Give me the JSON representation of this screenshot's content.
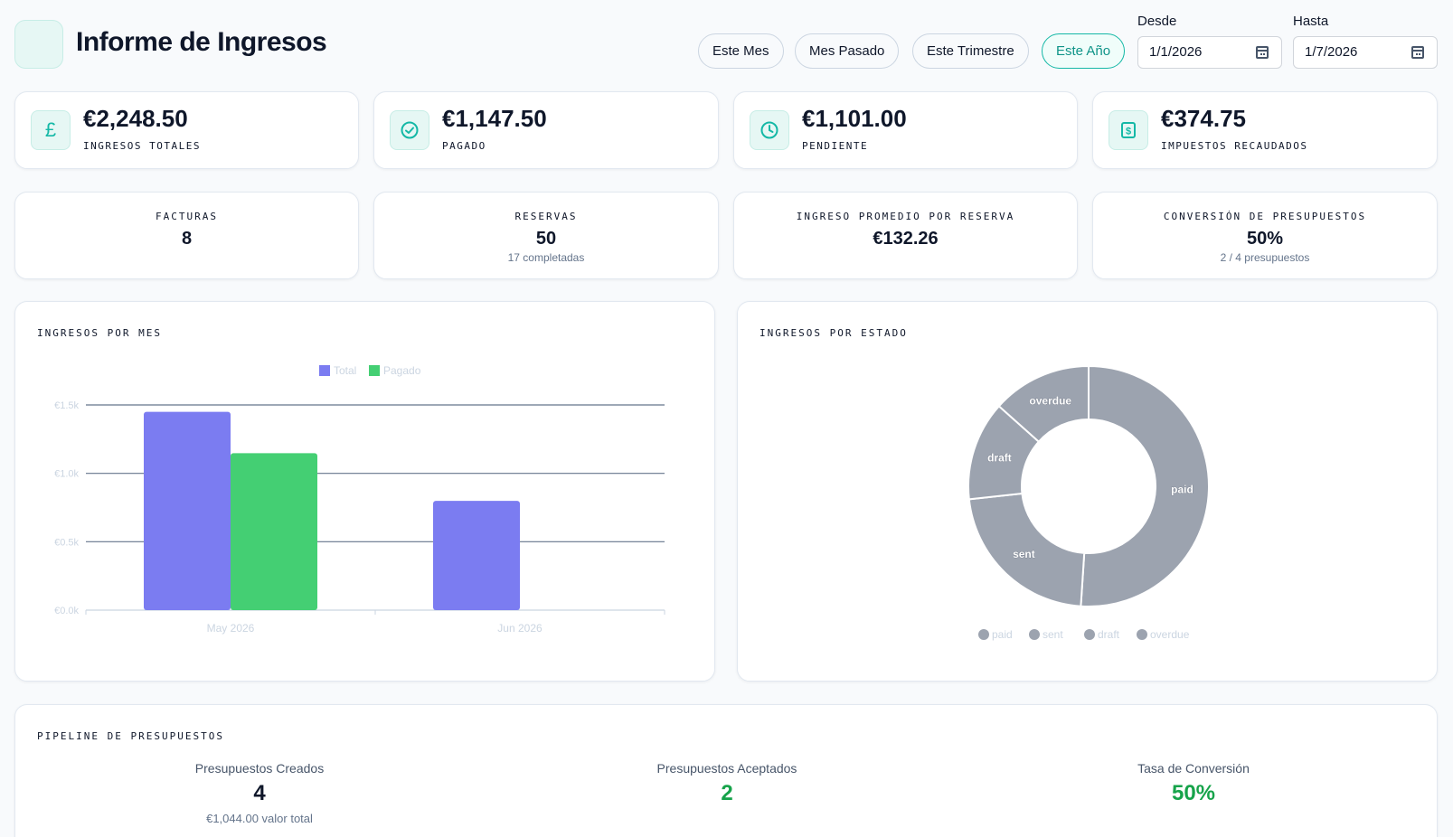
{
  "header": {
    "title": "Informe de Ingresos",
    "ranges": [
      "Este Mes",
      "Mes Pasado",
      "Este Trimestre",
      "Este Año"
    ],
    "active_range": "Este Año",
    "from_label": "Desde",
    "from_value": "1/1/2026",
    "to_label": "Hasta",
    "to_value": "1/7/2026"
  },
  "stats": [
    {
      "icon": "pound-icon",
      "value": "€2,248.50",
      "label": "INGRESOS TOTALES"
    },
    {
      "icon": "check-circle-icon",
      "value": "€1,147.50",
      "label": "PAGADO"
    },
    {
      "icon": "clock-icon",
      "value": "€1,101.00",
      "label": "PENDIENTE"
    },
    {
      "icon": "receipt-icon",
      "value": "€374.75",
      "label": "IMPUESTOS RECAUDADOS"
    }
  ],
  "metrics": [
    {
      "label": "FACTURAS",
      "value": "8",
      "sub": ""
    },
    {
      "label": "RESERVAS",
      "value": "50",
      "sub": "17 completadas"
    },
    {
      "label": "INGRESO PROMEDIO POR RESERVA",
      "value": "€132.26",
      "sub": ""
    },
    {
      "label": "CONVERSIÓN DE PRESUPUESTOS",
      "value": "50%",
      "sub": "2 / 4 presupuestos"
    }
  ],
  "charts": {
    "monthly_title": "INGRESOS POR MES",
    "status_title": "INGRESOS POR ESTADO"
  },
  "chart_data": [
    {
      "type": "bar",
      "title": "INGRESOS POR MES",
      "categories": [
        "May 2026",
        "Jun 2026"
      ],
      "series": [
        {
          "name": "Total",
          "values": [
            1450,
            798.5
          ]
        },
        {
          "name": "Pagado",
          "values": [
            1147.5,
            0
          ]
        }
      ],
      "ylim": [
        0,
        1500
      ],
      "yticks": [
        "€0.0k",
        "€0.5k",
        "€1.0k",
        "€1.5k"
      ],
      "grid": true,
      "legend": "top",
      "colors": [
        "#7b7cf1",
        "#44cf73"
      ]
    },
    {
      "type": "pie",
      "title": "INGRESOS POR ESTADO",
      "labels": [
        "paid",
        "sent",
        "draft",
        "overdue"
      ],
      "values": [
        1147.5,
        500,
        300,
        301
      ],
      "legend": "bottom",
      "colors": [
        "#9ca3af",
        "#9ca3af",
        "#9ca3af",
        "#9ca3af"
      ]
    }
  ],
  "pipeline": {
    "title": "PIPELINE DE PRESUPUESTOS",
    "created_label": "Presupuestos Creados",
    "created_value": "4",
    "created_sub": "€1,044.00 valor total",
    "accepted_label": "Presupuestos Aceptados",
    "accepted_value": "2",
    "rate_label": "Tasa de Conversión",
    "rate_value": "50%"
  }
}
